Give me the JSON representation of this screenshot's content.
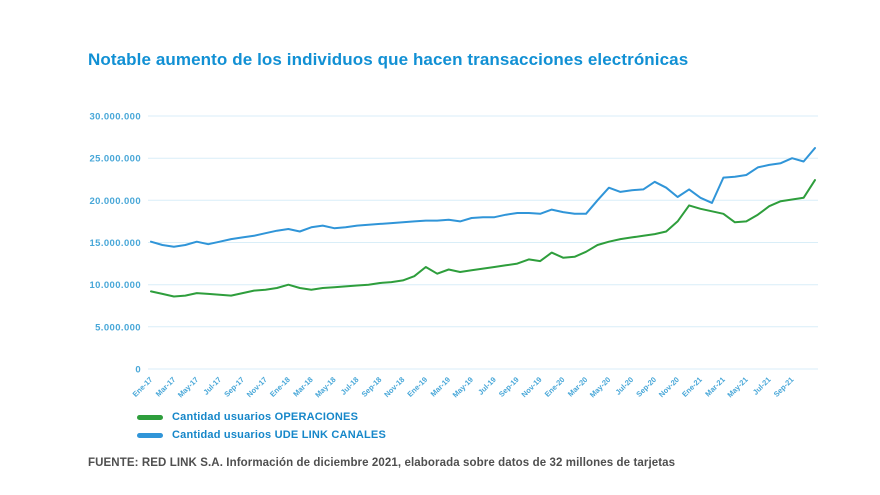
{
  "title": "Notable aumento de los individuos que hacen transacciones electrónicas",
  "source_note": "FUENTE: RED LINK S.A. Información de diciembre 2021, elaborada sobre datos de 32 millones de tarjetas",
  "colors": {
    "title": "#1190d4",
    "axis_label": "#48a7d8",
    "gridline": "#d9eef8",
    "legend_text": "#1687c9",
    "footer_text": "#4f4f4f",
    "operaciones_green": "#2e9e3c",
    "ude_link_blue": "#3095d8"
  },
  "legend": {
    "items": [
      {
        "label": "Cantidad usuarios OPERACIONES",
        "series_key": "operaciones"
      },
      {
        "label": "Cantidad usuarios UDE LINK CANALES",
        "series_key": "ude-link-canales"
      }
    ]
  },
  "chart_data": {
    "type": "line",
    "title": "Notable aumento de los individuos que hacen transacciones electrónicas",
    "xlabel": "",
    "ylabel": "",
    "ylim": [
      0,
      30000000
    ],
    "grid": true,
    "legend_position": "bottom-left",
    "yticks": [
      0,
      5000000,
      10000000,
      15000000,
      20000000,
      25000000,
      30000000
    ],
    "ytick_labels": [
      "0",
      "5.000.000",
      "10.000.000",
      "15.000.000",
      "20.000.000",
      "25.000.000",
      "30.000.000"
    ],
    "x": [
      "Ene-17",
      "Feb-17",
      "Mar-17",
      "Abr-17",
      "May-17",
      "Jun-17",
      "Jul-17",
      "Ago-17",
      "Sep-17",
      "Oct-17",
      "Nov-17",
      "Dic-17",
      "Ene-18",
      "Feb-18",
      "Mar-18",
      "Abr-18",
      "May-18",
      "Jun-18",
      "Jul-18",
      "Ago-18",
      "Sep-18",
      "Oct-18",
      "Nov-18",
      "Dic-18",
      "Ene-19",
      "Feb-19",
      "Mar-19",
      "Abr-19",
      "May-19",
      "Jun-19",
      "Jul-19",
      "Ago-19",
      "Sep-19",
      "Oct-19",
      "Nov-19",
      "Dic-19",
      "Ene-20",
      "Feb-20",
      "Mar-20",
      "Abr-20",
      "May-20",
      "Jun-20",
      "Jul-20",
      "Ago-20",
      "Sep-20",
      "Oct-20",
      "Nov-20",
      "Dic-20",
      "Ene-21",
      "Feb-21",
      "Mar-21",
      "Abr-21",
      "May-21",
      "Jun-21",
      "Jul-21",
      "Ago-21",
      "Sep-21",
      "Oct-21",
      "Nov-21"
    ],
    "x_tick_labels": [
      "Ene-17",
      "Mar-17",
      "May-17",
      "Jul-17",
      "Sep-17",
      "Nov-17",
      "Ene-18",
      "Mar-18",
      "May-18",
      "Jul-18",
      "Sep-18",
      "Nov-18",
      "Ene-19",
      "Mar-19",
      "May-19",
      "Jul-19",
      "Sep-19",
      "Nov-19",
      "Ene-20",
      "Mar-20",
      "May-20",
      "Jul-20",
      "Sep-20",
      "Nov-20",
      "Ene-21",
      "Mar-21",
      "May-21",
      "Jul-21",
      "Sep-21"
    ],
    "series": [
      {
        "key": "operaciones",
        "name": "Cantidad usuarios OPERACIONES",
        "color": "#2e9e3c",
        "values": [
          9200000,
          8900000,
          8600000,
          8700000,
          9000000,
          8900000,
          8800000,
          8700000,
          9000000,
          9300000,
          9400000,
          9600000,
          10000000,
          9600000,
          9400000,
          9600000,
          9700000,
          9800000,
          9900000,
          10000000,
          10200000,
          10300000,
          10500000,
          11000000,
          12100000,
          11300000,
          11800000,
          11500000,
          11700000,
          11900000,
          12100000,
          12300000,
          12500000,
          13000000,
          12800000,
          13800000,
          13200000,
          13300000,
          13900000,
          14700000,
          15100000,
          15400000,
          15600000,
          15800000,
          16000000,
          16300000,
          17500000,
          19400000,
          19000000,
          18700000,
          18400000,
          17400000,
          17500000,
          18300000,
          19300000,
          19900000,
          20100000,
          20300000,
          22400000
        ]
      },
      {
        "key": "ude-link-canales",
        "name": "Cantidad usuarios UDE LINK CANALES",
        "color": "#3095d8",
        "values": [
          15100000,
          14700000,
          14500000,
          14700000,
          15100000,
          14800000,
          15100000,
          15400000,
          15600000,
          15800000,
          16100000,
          16400000,
          16600000,
          16300000,
          16800000,
          17000000,
          16700000,
          16800000,
          17000000,
          17100000,
          17200000,
          17300000,
          17400000,
          17500000,
          17600000,
          17600000,
          17700000,
          17500000,
          17900000,
          18000000,
          18000000,
          18300000,
          18500000,
          18500000,
          18400000,
          18900000,
          18600000,
          18400000,
          18400000,
          20000000,
          21500000,
          21000000,
          21200000,
          21300000,
          22200000,
          21500000,
          20400000,
          21300000,
          20300000,
          19700000,
          22700000,
          22800000,
          23000000,
          23900000,
          24200000,
          24400000,
          25000000,
          24600000,
          26200000
        ]
      }
    ]
  }
}
